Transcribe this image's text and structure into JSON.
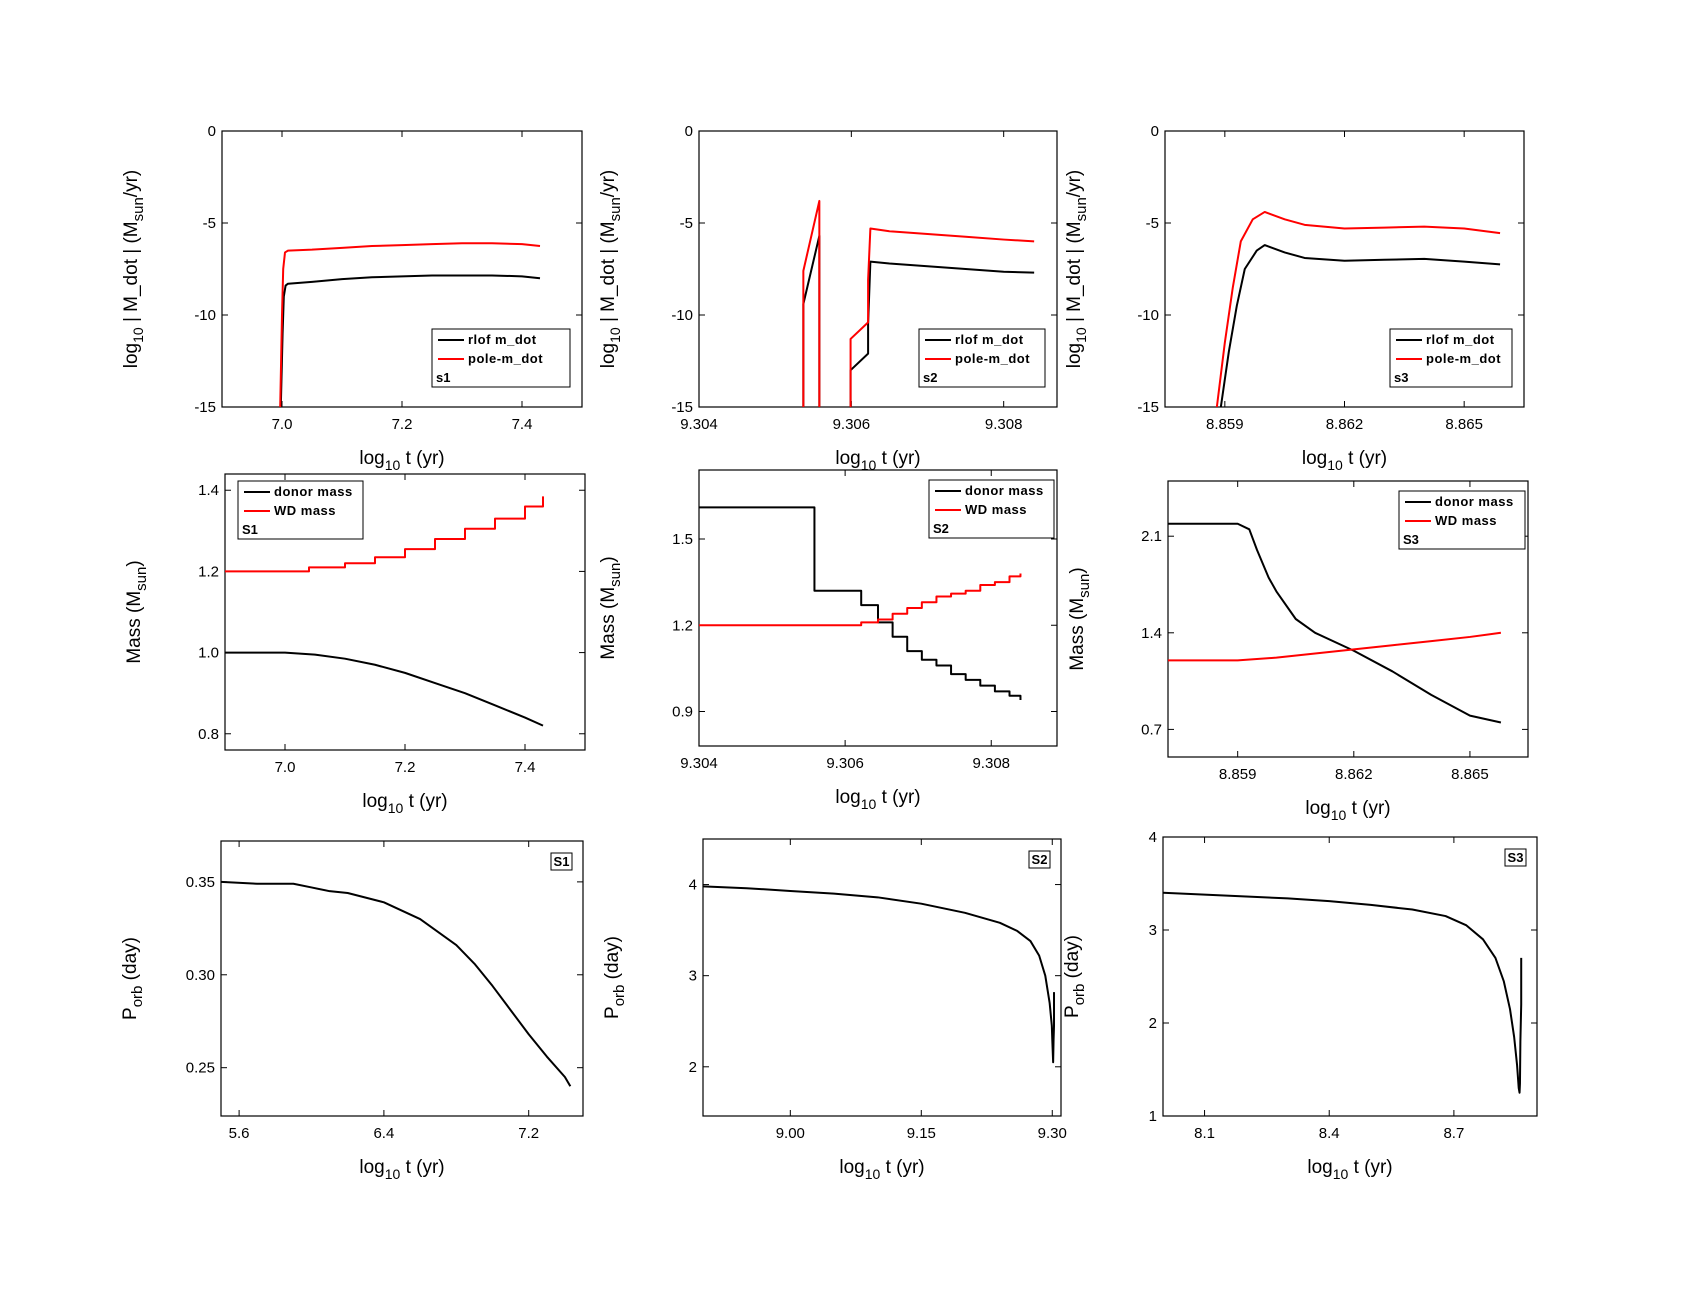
{
  "chart_data": [
    {
      "id": "r0c0",
      "type": "line",
      "row": 0,
      "col": 0,
      "xlabel": "log10 t (yr)",
      "ylabel": "log10 | M_dot | (Msun/yr)",
      "xlim": [
        6.9,
        7.5
      ],
      "ylim": [
        -15,
        0
      ],
      "xticks": [
        7.0,
        7.2,
        7.4
      ],
      "xtick_labels": [
        "7.0",
        "7.2",
        "7.4"
      ],
      "yticks": [
        0,
        -5,
        -10,
        -15
      ],
      "ytick_labels": [
        "0",
        "-5",
        "-10",
        "-15"
      ],
      "legend": {
        "position": "lower-right",
        "entries": [
          "rlof m_dot",
          "pole-m_dot"
        ],
        "tag": "s1"
      },
      "series": [
        {
          "name": "rlof m_dot",
          "color": "#000000",
          "x": [
            6.998,
            7.001,
            7.003,
            7.006,
            7.01,
            7.05,
            7.1,
            7.15,
            7.2,
            7.25,
            7.3,
            7.35,
            7.4,
            7.43
          ],
          "y": [
            -15,
            -11,
            -9,
            -8.4,
            -8.3,
            -8.2,
            -8.05,
            -7.95,
            -7.9,
            -7.85,
            -7.85,
            -7.85,
            -7.9,
            -8.0
          ]
        },
        {
          "name": "pole-m_dot",
          "color": "#ff0000",
          "x": [
            6.997,
            7.0,
            7.002,
            7.005,
            7.01,
            7.05,
            7.1,
            7.15,
            7.2,
            7.25,
            7.3,
            7.35,
            7.4,
            7.43
          ],
          "y": [
            -15,
            -10,
            -7.5,
            -6.6,
            -6.5,
            -6.45,
            -6.35,
            -6.25,
            -6.2,
            -6.15,
            -6.1,
            -6.1,
            -6.15,
            -6.25
          ]
        }
      ]
    },
    {
      "id": "r0c1",
      "type": "line",
      "row": 0,
      "col": 1,
      "xlabel": "log10 t (yr)",
      "ylabel": "log10 | M_dot | (Msun/yr)",
      "xlim": [
        9.304,
        9.3087
      ],
      "ylim": [
        -15,
        0
      ],
      "xticks": [
        9.304,
        9.306,
        9.308
      ],
      "xtick_labels": [
        "9.304",
        "9.306",
        "9.308"
      ],
      "yticks": [
        0,
        -5,
        -10,
        -15
      ],
      "ytick_labels": [
        "0",
        "-5",
        "-10",
        "-15"
      ],
      "legend": {
        "position": "lower-right",
        "entries": [
          "rlof m_dot",
          "pole-m_dot"
        ],
        "tag": "s2"
      },
      "series": [
        {
          "name": "rlof m_dot",
          "color": "#000000",
          "x": [
            9.30537,
            9.30537,
            9.30558,
            9.30558,
            null,
            9.30599,
            9.30599,
            9.30622,
            9.30622,
            9.30625,
            9.3065,
            9.307,
            9.3075,
            9.308,
            9.3084
          ],
          "y": [
            -15,
            -9.4,
            -5.7,
            -15,
            null,
            -15,
            -13,
            -12.1,
            -10.5,
            -7.1,
            -7.2,
            -7.35,
            -7.5,
            -7.65,
            -7.7
          ]
        },
        {
          "name": "pole-m_dot",
          "color": "#ff0000",
          "x": [
            9.30537,
            9.30537,
            9.30558,
            9.30558,
            null,
            9.30599,
            9.30599,
            9.30622,
            9.30622,
            9.30625,
            9.3065,
            9.307,
            9.3075,
            9.308,
            9.3084
          ],
          "y": [
            -15,
            -7.6,
            -3.8,
            -15,
            null,
            -15,
            -11.3,
            -10.4,
            -8.1,
            -5.3,
            -5.45,
            -5.6,
            -5.75,
            -5.9,
            -6.0
          ]
        }
      ]
    },
    {
      "id": "r0c2",
      "type": "line",
      "row": 0,
      "col": 2,
      "xlabel": "log10 t (yr)",
      "ylabel": "log10 | M_dot | (Msun/yr)",
      "xlim": [
        8.8575,
        8.8665
      ],
      "ylim": [
        -15,
        0
      ],
      "xticks": [
        8.859,
        8.862,
        8.865
      ],
      "xtick_labels": [
        "8.859",
        "8.862",
        "8.865"
      ],
      "yticks": [
        0,
        -5,
        -10,
        -15
      ],
      "ytick_labels": [
        "0",
        "-5",
        "-10",
        "-15"
      ],
      "legend": {
        "position": "lower-right",
        "entries": [
          "rlof m_dot",
          "pole-m_dot"
        ],
        "tag": "s3"
      },
      "series": [
        {
          "name": "rlof m_dot",
          "color": "#000000",
          "x": [
            8.8589,
            8.8591,
            8.8593,
            8.8595,
            8.8598,
            8.86,
            8.8605,
            8.861,
            8.862,
            8.863,
            8.864,
            8.865,
            8.8659
          ],
          "y": [
            -15,
            -12,
            -9.5,
            -7.5,
            -6.5,
            -6.2,
            -6.6,
            -6.9,
            -7.05,
            -7.0,
            -6.95,
            -7.1,
            -7.25
          ]
        },
        {
          "name": "pole-m_dot",
          "color": "#ff0000",
          "x": [
            8.8588,
            8.859,
            8.8592,
            8.8594,
            8.8597,
            8.86,
            8.8605,
            8.861,
            8.862,
            8.863,
            8.864,
            8.865,
            8.8659
          ],
          "y": [
            -15,
            -11.5,
            -8.5,
            -6.0,
            -4.8,
            -4.4,
            -4.8,
            -5.1,
            -5.3,
            -5.25,
            -5.2,
            -5.3,
            -5.55
          ]
        }
      ]
    },
    {
      "id": "r1c0",
      "type": "line",
      "row": 1,
      "col": 0,
      "xlabel": "log10 t (yr)",
      "ylabel": "Mass (Msun)",
      "xlim": [
        6.9,
        7.5
      ],
      "ylim": [
        0.76,
        1.44
      ],
      "xticks": [
        7.0,
        7.2,
        7.4
      ],
      "xtick_labels": [
        "7.0",
        "7.2",
        "7.4"
      ],
      "yticks": [
        0.8,
        1.0,
        1.2,
        1.4
      ],
      "ytick_labels": [
        "0.8",
        "1.0",
        "1.2",
        "1.4"
      ],
      "legend": {
        "position": "top-left",
        "entries": [
          "donor mass",
          "WD mass"
        ],
        "tag": "S1"
      },
      "series": [
        {
          "name": "donor mass",
          "color": "#000000",
          "x": [
            6.9,
            7.0,
            7.05,
            7.1,
            7.15,
            7.2,
            7.25,
            7.3,
            7.35,
            7.4,
            7.43
          ],
          "y": [
            1.0,
            1.0,
            0.995,
            0.985,
            0.97,
            0.95,
            0.925,
            0.9,
            0.87,
            0.84,
            0.82
          ]
        },
        {
          "name": "WD mass",
          "color": "#ff0000",
          "step": true,
          "x": [
            6.9,
            7.04,
            7.1,
            7.15,
            7.2,
            7.25,
            7.3,
            7.35,
            7.4,
            7.43
          ],
          "y": [
            1.2,
            1.21,
            1.22,
            1.235,
            1.255,
            1.28,
            1.305,
            1.33,
            1.36,
            1.385
          ]
        }
      ]
    },
    {
      "id": "r1c1",
      "type": "line",
      "row": 1,
      "col": 1,
      "xlabel": "log10 t (yr)",
      "ylabel": "Mass (Msun)",
      "xlim": [
        9.304,
        9.3089
      ],
      "ylim": [
        0.78,
        1.74
      ],
      "xticks": [
        9.304,
        9.306,
        9.308
      ],
      "xtick_labels": [
        "9.304",
        "9.306",
        "9.308"
      ],
      "yticks": [
        0.9,
        1.2,
        1.5
      ],
      "ytick_labels": [
        "0.9",
        "1.2",
        "1.5"
      ],
      "legend": {
        "position": "top-right",
        "entries": [
          "donor mass",
          "WD mass"
        ],
        "tag": "S2"
      },
      "series": [
        {
          "name": "donor mass",
          "color": "#000000",
          "step": true,
          "x": [
            9.304,
            9.30537,
            9.30558,
            9.30599,
            9.30622,
            9.30645,
            9.30665,
            9.30685,
            9.30705,
            9.30725,
            9.30745,
            9.30765,
            9.30785,
            9.30805,
            9.30825,
            9.3084
          ],
          "y": [
            1.61,
            1.61,
            1.32,
            1.32,
            1.27,
            1.21,
            1.16,
            1.11,
            1.08,
            1.06,
            1.03,
            1.01,
            0.99,
            0.97,
            0.955,
            0.94
          ]
        },
        {
          "name": "WD mass",
          "color": "#ff0000",
          "step": true,
          "x": [
            9.304,
            9.30599,
            9.30622,
            9.30645,
            9.30665,
            9.30685,
            9.30705,
            9.30725,
            9.30745,
            9.30765,
            9.30785,
            9.30805,
            9.30825,
            9.3084
          ],
          "y": [
            1.2,
            1.2,
            1.21,
            1.22,
            1.24,
            1.26,
            1.28,
            1.3,
            1.31,
            1.32,
            1.34,
            1.35,
            1.37,
            1.38
          ]
        }
      ]
    },
    {
      "id": "r1c2",
      "type": "line",
      "row": 1,
      "col": 2,
      "xlabel": "log10 t (yr)",
      "ylabel": "Mass (Msun)",
      "xlim": [
        8.8572,
        8.8665
      ],
      "ylim": [
        0.5,
        2.5
      ],
      "xticks": [
        8.859,
        8.862,
        8.865
      ],
      "xtick_labels": [
        "8.859",
        "8.862",
        "8.865"
      ],
      "yticks": [
        0.7,
        1.4,
        2.1
      ],
      "ytick_labels": [
        "0.7",
        "1.4",
        "2.1"
      ],
      "legend": {
        "position": "top-right",
        "entries": [
          "donor mass",
          "WD mass"
        ],
        "tag": "S3"
      },
      "series": [
        {
          "name": "donor mass",
          "color": "#000000",
          "x": [
            8.8572,
            8.859,
            8.8593,
            8.8595,
            8.8598,
            8.86,
            8.8605,
            8.861,
            8.862,
            8.863,
            8.864,
            8.865,
            8.8658
          ],
          "y": [
            2.19,
            2.19,
            2.15,
            2.0,
            1.8,
            1.7,
            1.5,
            1.4,
            1.27,
            1.12,
            0.95,
            0.8,
            0.75
          ]
        },
        {
          "name": "WD mass",
          "color": "#ff0000",
          "x": [
            8.8572,
            8.859,
            8.86,
            8.861,
            8.862,
            8.863,
            8.864,
            8.865,
            8.8658
          ],
          "y": [
            1.2,
            1.2,
            1.22,
            1.25,
            1.28,
            1.31,
            1.34,
            1.37,
            1.4
          ]
        }
      ]
    },
    {
      "id": "r2c0",
      "type": "line",
      "row": 2,
      "col": 0,
      "xlabel": "log10 t (yr)",
      "ylabel": "Porb (day)",
      "xlim": [
        5.5,
        7.5
      ],
      "ylim": [
        0.224,
        0.372
      ],
      "xticks": [
        5.6,
        6.4,
        7.2
      ],
      "xtick_labels": [
        "5.6",
        "6.4",
        "7.2"
      ],
      "yticks": [
        0.25,
        0.3,
        0.35
      ],
      "ytick_labels": [
        "0.25",
        "0.30",
        "0.35"
      ],
      "legend": {
        "position": "top-right",
        "entries": [],
        "tag": "S1"
      },
      "series": [
        {
          "name": "",
          "color": "#000000",
          "x": [
            5.5,
            5.7,
            5.9,
            6.0,
            6.1,
            6.2,
            6.4,
            6.6,
            6.8,
            6.9,
            7.0,
            7.1,
            7.2,
            7.3,
            7.4,
            7.43
          ],
          "y": [
            0.35,
            0.349,
            0.349,
            0.347,
            0.345,
            0.344,
            0.339,
            0.33,
            0.316,
            0.306,
            0.294,
            0.281,
            0.268,
            0.256,
            0.245,
            0.24
          ]
        }
      ]
    },
    {
      "id": "r2c1",
      "type": "line",
      "row": 2,
      "col": 1,
      "xlabel": "log10 t (yr)",
      "ylabel": "Porb (day)",
      "xlim": [
        8.9,
        9.31
      ],
      "ylim": [
        1.46,
        4.5
      ],
      "xticks": [
        9.0,
        9.15,
        9.3
      ],
      "xtick_labels": [
        "9.00",
        "9.15",
        "9.30"
      ],
      "yticks": [
        2,
        3,
        4
      ],
      "ytick_labels": [
        "2",
        "3",
        "4"
      ],
      "legend": {
        "position": "top-right",
        "entries": [],
        "tag": "S2"
      },
      "series": [
        {
          "name": "",
          "color": "#000000",
          "x": [
            8.9,
            8.95,
            9.0,
            9.05,
            9.1,
            9.15,
            9.2,
            9.24,
            9.26,
            9.275,
            9.285,
            9.292,
            9.297,
            9.2995,
            9.3,
            9.301,
            9.3015,
            9.302,
            9.302
          ],
          "y": [
            3.98,
            3.96,
            3.93,
            3.9,
            3.86,
            3.79,
            3.69,
            3.58,
            3.49,
            3.38,
            3.22,
            3.0,
            2.7,
            2.45,
            2.3,
            2.05,
            2.3,
            2.45,
            2.82
          ]
        }
      ]
    },
    {
      "id": "r2c2",
      "type": "line",
      "row": 2,
      "col": 2,
      "xlabel": "log10 t (yr)",
      "ylabel": "Porb (day)",
      "xlim": [
        8.0,
        8.9
      ],
      "ylim": [
        1,
        4
      ],
      "xticks": [
        8.1,
        8.4,
        8.7
      ],
      "xtick_labels": [
        "8.1",
        "8.4",
        "8.7"
      ],
      "yticks": [
        1,
        2,
        3,
        4
      ],
      "ytick_labels": [
        "1",
        "2",
        "3",
        "4"
      ],
      "legend": {
        "position": "top-right",
        "entries": [],
        "tag": "S3"
      },
      "series": [
        {
          "name": "",
          "color": "#000000",
          "x": [
            8.0,
            8.1,
            8.2,
            8.3,
            8.4,
            8.5,
            8.6,
            8.68,
            8.73,
            8.77,
            8.8,
            8.82,
            8.835,
            8.845,
            8.852,
            8.856,
            8.858,
            8.859,
            8.86,
            8.862,
            8.862
          ],
          "y": [
            3.4,
            3.38,
            3.36,
            3.34,
            3.31,
            3.27,
            3.22,
            3.15,
            3.05,
            2.9,
            2.7,
            2.45,
            2.15,
            1.85,
            1.55,
            1.3,
            1.25,
            1.35,
            1.8,
            2.2,
            2.7
          ]
        }
      ]
    }
  ]
}
